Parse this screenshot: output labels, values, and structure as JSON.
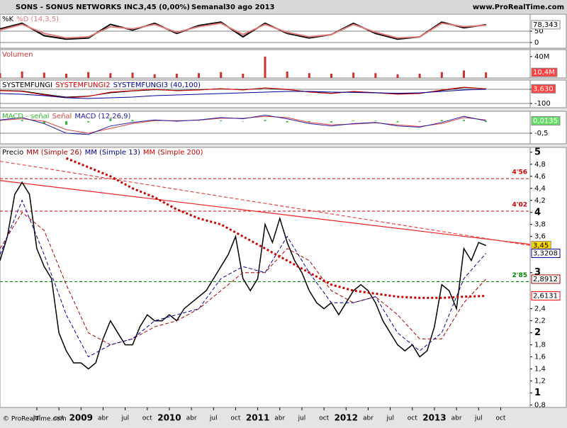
{
  "header": {
    "symbol": "SONS - SONUS NETWORKS INC.",
    "price": "3,45 (0,00%)",
    "period": "Semanal",
    "date": "30 ago 2013",
    "site": "www.ProRealTime.com"
  },
  "footer": "© ProRealTime.com",
  "chart_data": [
    {
      "type": "line",
      "grid": true,
      "x": [
        "2008-02",
        "2008-05",
        "2008-08",
        "2008-11",
        "2009-02",
        "2009-05",
        "2009-08",
        "2009-11",
        "2010-02",
        "2010-05",
        "2010-08",
        "2010-11",
        "2011-02",
        "2011-05",
        "2011-08",
        "2011-11",
        "2012-02",
        "2012-05",
        "2012-08",
        "2012-11",
        "2013-02",
        "2013-05",
        "2013-08"
      ],
      "ylim": [
        -25,
        125
      ],
      "yticks": [
        0,
        50
      ],
      "series": [
        {
          "name": "%K",
          "color": "#000000",
          "width": 2,
          "values": [
            60,
            85,
            30,
            15,
            20,
            80,
            55,
            85,
            40,
            75,
            90,
            25,
            85,
            40,
            20,
            35,
            85,
            40,
            15,
            25,
            90,
            65,
            78.343
          ]
        },
        {
          "name": "%D (14,3,5)",
          "color": "#e07878",
          "width": 2,
          "values": [
            55,
            80,
            40,
            20,
            25,
            70,
            60,
            80,
            45,
            70,
            85,
            35,
            80,
            45,
            25,
            35,
            80,
            45,
            20,
            25,
            85,
            70,
            76
          ]
        }
      ],
      "markers": [
        {
          "value": 78.343,
          "label": "78,343",
          "color": "#ffffff"
        }
      ]
    },
    {
      "type": "bar",
      "x": [
        "2008-02",
        "2008-05",
        "2008-08",
        "2008-11",
        "2009-02",
        "2009-05",
        "2009-08",
        "2009-11",
        "2010-02",
        "2010-05",
        "2010-08",
        "2010-11",
        "2011-02",
        "2011-05",
        "2011-08",
        "2011-11",
        "2012-02",
        "2012-05",
        "2012-08",
        "2012-11",
        "2013-02",
        "2013-05",
        "2013-08"
      ],
      "ylim": [
        0,
        53000000
      ],
      "yticks": [
        {
          "value": 40000000,
          "label": "40M"
        }
      ],
      "series": [
        {
          "name": "Volumen",
          "color": "#cc3333",
          "values": [
            9000000,
            12000000,
            10000000,
            8000000,
            11000000,
            9000000,
            10000000,
            7000000,
            8000000,
            9000000,
            11000000,
            8000000,
            40000000,
            12000000,
            9000000,
            8000000,
            10000000,
            9000000,
            7000000,
            8000000,
            11000000,
            14000000,
            10400000
          ]
        }
      ],
      "markers": [
        {
          "value": 10400000,
          "label": "10,4M",
          "color": "#ff4040"
        }
      ]
    },
    {
      "type": "line",
      "grid": true,
      "x": [
        "2008-02",
        "2008-05",
        "2008-08",
        "2008-11",
        "2009-02",
        "2009-05",
        "2009-08",
        "2009-11",
        "2010-02",
        "2010-05",
        "2010-08",
        "2010-11",
        "2011-02",
        "2011-05",
        "2011-08",
        "2011-11",
        "2012-02",
        "2012-05",
        "2012-08",
        "2012-11",
        "2013-02",
        "2013-05",
        "2013-08"
      ],
      "ylim": [
        -130,
        65
      ],
      "yticks": [
        0,
        -100
      ],
      "series": [
        {
          "name": "SYSTEMFUNGI",
          "color": "#000000",
          "width": 1,
          "values": [
            -8,
            -12,
            -35,
            -55,
            -48,
            -25,
            -12,
            -3,
            -8,
            -4,
            3,
            -3,
            8,
            -2,
            -18,
            -28,
            -16,
            -24,
            -32,
            -28,
            -8,
            12,
            4
          ]
        },
        {
          "name": "SYSTEMFUNGI2",
          "color": "#dd0000",
          "width": 1,
          "values": [
            -10,
            -15,
            -40,
            -60,
            -50,
            -20,
            -10,
            0,
            -10,
            -5,
            5,
            -5,
            10,
            0,
            -20,
            -30,
            -15,
            -25,
            -35,
            -30,
            -5,
            15,
            3.63
          ]
        },
        {
          "name": "SYSTEMFUNGI3 (40,100)",
          "color": "#000099",
          "width": 1,
          "values": [
            -30,
            -35,
            -45,
            -60,
            -65,
            -60,
            -55,
            -45,
            -40,
            -35,
            -30,
            -25,
            -20,
            -15,
            -15,
            -20,
            -22,
            -25,
            -28,
            -25,
            -15,
            -5,
            0
          ]
        }
      ],
      "markers": [
        {
          "value": 3.63,
          "label": "3,630",
          "color": "#ff4040"
        }
      ]
    },
    {
      "type": "line",
      "grid": true,
      "x": [
        "2008-02",
        "2008-05",
        "2008-08",
        "2008-11",
        "2009-02",
        "2009-05",
        "2009-08",
        "2009-11",
        "2010-02",
        "2010-05",
        "2010-08",
        "2010-11",
        "2011-02",
        "2011-05",
        "2011-08",
        "2011-11",
        "2012-02",
        "2012-05",
        "2012-08",
        "2012-11",
        "2013-02",
        "2013-05",
        "2013-08"
      ],
      "ylim": [
        -0.94,
        0.41
      ],
      "yticks": [
        {
          "value": -0.5,
          "label": "-0,5"
        }
      ],
      "series": [
        {
          "name": "MACD - señal",
          "color": "#33bb33",
          "kind": "bar",
          "values": [
            0.02,
            0.05,
            -0.1,
            -0.15,
            -0.05,
            0.1,
            0.05,
            0.03,
            -0.02,
            0.01,
            0.03,
            -0.02,
            0.05,
            -0.05,
            -0.05,
            -0.05,
            0.02,
            0.02,
            -0.05,
            -0.03,
            0.05,
            0.05,
            -0.04
          ]
        },
        {
          "name": "Señal",
          "color": "#dd4444",
          "width": 1,
          "values": [
            0.03,
            0.1,
            0,
            -0.35,
            -0.5,
            -0.3,
            -0.1,
            0.02,
            0.02,
            0.04,
            0.12,
            0.12,
            0.2,
            0.15,
            -0.05,
            -0.15,
            -0.12,
            -0.07,
            -0.15,
            -0.22,
            -0.1,
            0.15,
            0.05
          ]
        },
        {
          "name": "MACD (12,26,9)",
          "color": "#2222aa",
          "width": 1,
          "values": [
            0.05,
            0.15,
            -0.1,
            -0.5,
            -0.55,
            -0.2,
            -0.05,
            0.05,
            0,
            0.05,
            0.15,
            0.1,
            0.25,
            0.1,
            -0.1,
            -0.2,
            -0.1,
            -0.05,
            -0.2,
            -0.25,
            -0.05,
            0.2,
            0.0135
          ]
        }
      ],
      "markers": [
        {
          "value": 0.0135,
          "label": "0,0135",
          "color": "#66dd66"
        }
      ]
    },
    {
      "type": "line",
      "xlim": [
        "2008-02",
        "2014-02"
      ],
      "xticks": [
        {
          "value": "2008-07",
          "label": "jul"
        },
        {
          "value": "2008-10",
          "label": "oct"
        },
        {
          "value": "2009-01",
          "label": "2009"
        },
        {
          "value": "2009-04",
          "label": "abr"
        },
        {
          "value": "2009-07",
          "label": "jul"
        },
        {
          "value": "2009-10",
          "label": "oct"
        },
        {
          "value": "2010-01",
          "label": "2010"
        },
        {
          "value": "2010-04",
          "label": "abr"
        },
        {
          "value": "2010-07",
          "label": "jul"
        },
        {
          "value": "2010-10",
          "label": "oct"
        },
        {
          "value": "2011-01",
          "label": "2011"
        },
        {
          "value": "2011-04",
          "label": "abr"
        },
        {
          "value": "2011-07",
          "label": "jul"
        },
        {
          "value": "2011-10",
          "label": "oct"
        },
        {
          "value": "2012-01",
          "label": "2012"
        },
        {
          "value": "2012-04",
          "label": "abr"
        },
        {
          "value": "2012-07",
          "label": "jul"
        },
        {
          "value": "2012-10",
          "label": "oct"
        },
        {
          "value": "2013-01",
          "label": "2013"
        },
        {
          "value": "2013-04",
          "label": "abr"
        },
        {
          "value": "2013-07",
          "label": "jul"
        },
        {
          "value": "2013-10",
          "label": "oct"
        }
      ],
      "ylim": [
        0.76,
        5.08
      ],
      "yticks": [
        5,
        {
          "value": 4.8,
          "label": "4,8"
        },
        {
          "value": 4.6,
          "label": "4,6"
        },
        {
          "value": 4.4,
          "label": "4,4"
        },
        {
          "value": 4.2,
          "label": "4,2"
        },
        4,
        {
          "value": 3.8,
          "label": "3,8"
        },
        {
          "value": 3.6,
          "label": "3,6"
        },
        3,
        {
          "value": 2.4,
          "label": "2,4"
        },
        {
          "value": 2.2,
          "label": "2,2"
        },
        2,
        {
          "value": 1.8,
          "label": "1,8"
        },
        {
          "value": 1.6,
          "label": "1,6"
        },
        {
          "value": 1.4,
          "label": "1,4"
        },
        {
          "value": 1.2,
          "label": "1,2"
        },
        1,
        {
          "value": 0.8,
          "label": "0,8"
        }
      ],
      "series": [
        {
          "name": "Precio",
          "color": "#000000",
          "width": 1.5,
          "x": [
            "2008-02",
            "2008-03",
            "2008-04",
            "2008-05",
            "2008-06",
            "2008-07",
            "2008-08",
            "2008-09",
            "2008-10",
            "2008-11",
            "2008-12",
            "2009-01",
            "2009-02",
            "2009-03",
            "2009-04",
            "2009-05",
            "2009-06",
            "2009-07",
            "2009-08",
            "2009-09",
            "2009-10",
            "2009-11",
            "2009-12",
            "2010-01",
            "2010-02",
            "2010-03",
            "2010-04",
            "2010-05",
            "2010-06",
            "2010-07",
            "2010-08",
            "2010-09",
            "2010-10",
            "2010-11",
            "2010-12",
            "2011-01",
            "2011-02",
            "2011-03",
            "2011-04",
            "2011-05",
            "2011-06",
            "2011-07",
            "2011-08",
            "2011-09",
            "2011-10",
            "2011-11",
            "2011-12",
            "2012-01",
            "2012-02",
            "2012-03",
            "2012-04",
            "2012-05",
            "2012-06",
            "2012-07",
            "2012-08",
            "2012-09",
            "2012-10",
            "2012-11",
            "2012-12",
            "2013-01",
            "2013-02",
            "2013-03",
            "2013-04",
            "2013-05",
            "2013-06",
            "2013-07",
            "2013-08"
          ],
          "values": [
            3.2,
            3.6,
            4.3,
            4.5,
            4.3,
            3.4,
            3.1,
            2.9,
            2.0,
            1.7,
            1.5,
            1.5,
            1.4,
            1.5,
            1.9,
            2.2,
            2.0,
            1.8,
            1.8,
            2.1,
            2.3,
            2.2,
            2.2,
            2.3,
            2.2,
            2.4,
            2.5,
            2.6,
            2.7,
            2.9,
            3.1,
            3.3,
            3.6,
            2.9,
            2.7,
            2.9,
            3.8,
            3.5,
            3.9,
            3.5,
            3.2,
            3.0,
            2.7,
            2.5,
            2.4,
            2.5,
            2.3,
            2.5,
            2.7,
            2.8,
            2.7,
            2.5,
            2.2,
            2.0,
            1.8,
            1.7,
            1.8,
            1.6,
            1.7,
            2.1,
            2.8,
            2.7,
            2.4,
            3.4,
            3.2,
            3.5,
            3.45
          ]
        },
        {
          "name": "MM (Simple 26)",
          "color": "#aa0000",
          "width": 1,
          "style": "dashed",
          "x": [
            "2008-02",
            "2008-05",
            "2008-08",
            "2008-11",
            "2009-02",
            "2009-05",
            "2009-08",
            "2009-11",
            "2010-02",
            "2010-05",
            "2010-08",
            "2010-11",
            "2011-02",
            "2011-05",
            "2011-08",
            "2011-11",
            "2012-02",
            "2012-05",
            "2012-08",
            "2012-11",
            "2013-02",
            "2013-05",
            "2013-08"
          ],
          "values": [
            3.4,
            4.0,
            3.7,
            2.8,
            2.0,
            1.8,
            1.9,
            2.1,
            2.2,
            2.4,
            2.7,
            3.0,
            3.0,
            3.4,
            3.2,
            2.7,
            2.5,
            2.6,
            2.3,
            1.9,
            1.9,
            2.5,
            2.8912
          ]
        },
        {
          "name": "MM (Simple 13)",
          "color": "#000099",
          "width": 1,
          "style": "dashed",
          "x": [
            "2008-02",
            "2008-05",
            "2008-08",
            "2008-11",
            "2009-02",
            "2009-05",
            "2009-08",
            "2009-11",
            "2010-02",
            "2010-05",
            "2010-08",
            "2010-11",
            "2011-02",
            "2011-05",
            "2011-08",
            "2011-11",
            "2012-02",
            "2012-05",
            "2012-08",
            "2012-11",
            "2013-02",
            "2013-05",
            "2013-08"
          ],
          "values": [
            3.3,
            4.2,
            3.3,
            2.3,
            1.6,
            1.8,
            1.9,
            2.2,
            2.3,
            2.4,
            2.9,
            3.1,
            3.0,
            3.6,
            3.0,
            2.5,
            2.5,
            2.6,
            2.0,
            1.7,
            2.0,
            2.9,
            3.3208
          ]
        },
        {
          "name": "MM (Simple 200)",
          "color": "#cc0000",
          "width": 3,
          "style": "dotted",
          "x": [
            "2008-11",
            "2009-02",
            "2009-05",
            "2009-08",
            "2009-11",
            "2010-02",
            "2010-05",
            "2010-08",
            "2010-11",
            "2011-02",
            "2011-05",
            "2011-08",
            "2011-11",
            "2012-02",
            "2012-05",
            "2012-08",
            "2012-11",
            "2013-02",
            "2013-05",
            "2013-08"
          ],
          "values": [
            4.9,
            4.75,
            4.6,
            4.4,
            4.25,
            4.05,
            3.9,
            3.8,
            3.6,
            3.4,
            3.2,
            3.0,
            2.8,
            2.7,
            2.65,
            2.6,
            2.58,
            2.58,
            2.6,
            2.6131
          ]
        }
      ],
      "levels": [
        {
          "value": 4.56,
          "label": "4'56",
          "color": "#cc0000"
        },
        {
          "value": 4.02,
          "label": "4'02",
          "color": "#cc0000"
        },
        {
          "value": 2.85,
          "label": "2'85",
          "color": "#008800"
        }
      ],
      "trendlines": [
        {
          "color": "#ee2222",
          "style": "solid",
          "x": [
            "2008-02",
            "2014-02"
          ],
          "values": [
            4.53,
            3.47
          ]
        },
        {
          "color": "#ee4444",
          "style": "dashed",
          "x": [
            "2008-02",
            "2014-02"
          ],
          "values": [
            4.85,
            3.45
          ]
        }
      ],
      "markers": [
        {
          "value": 3.45,
          "label": "3,45",
          "color": "#ffd800"
        },
        {
          "value": 3.3208,
          "label": "3,3208",
          "color": "#ffffff",
          "border": "#000099"
        },
        {
          "value": 2.8912,
          "label": "2,8912",
          "color": "#ffffff",
          "border": "#aa0000"
        },
        {
          "value": 2.6131,
          "label": "2,6131",
          "color": "#ffffff",
          "border": "#ff0000"
        }
      ]
    }
  ]
}
